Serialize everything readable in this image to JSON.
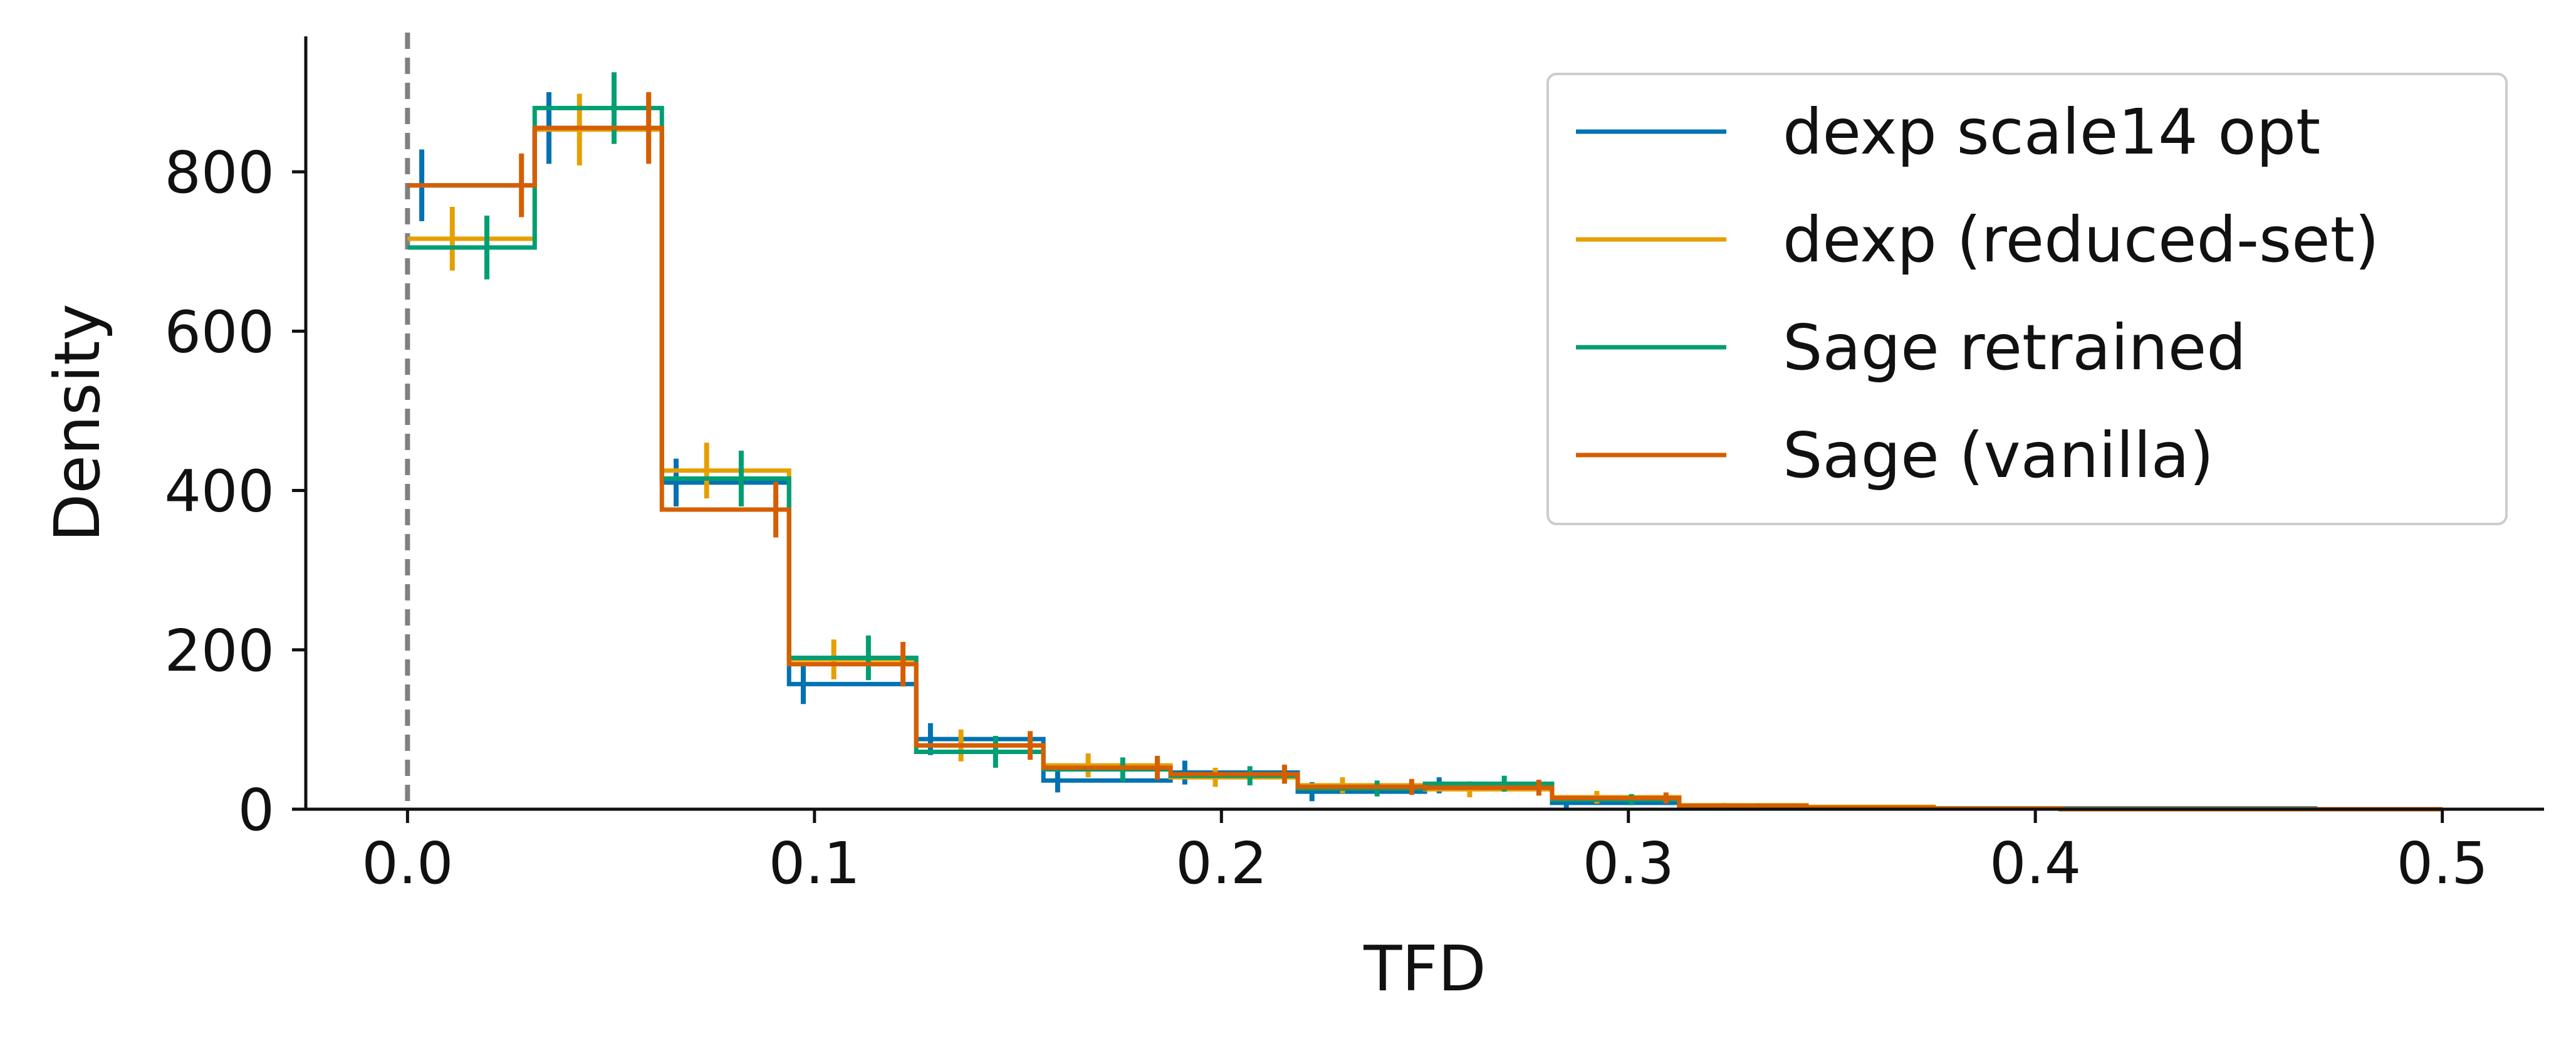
{
  "chart_data": {
    "type": "histogram-step",
    "xlabel": "TFD",
    "ylabel": "Density",
    "xlim": [
      -0.025,
      0.525
    ],
    "ylim": [
      0,
      970
    ],
    "xticks": [
      0.0,
      0.1,
      0.2,
      0.3,
      0.4,
      0.5
    ],
    "xtick_labels": [
      "0.0",
      "0.1",
      "0.2",
      "0.3",
      "0.4",
      "0.5"
    ],
    "yticks": [
      0,
      200,
      400,
      600,
      800
    ],
    "ytick_labels": [
      "0",
      "200",
      "400",
      "600",
      "800"
    ],
    "reference_line": {
      "x": 0.0,
      "style": "dashed",
      "color": "#808080"
    },
    "bin_edges": [
      0,
      0.03125,
      0.0625,
      0.09375,
      0.125,
      0.15625,
      0.1875,
      0.21875,
      0.25,
      0.28125,
      0.3125,
      0.34375,
      0.375,
      0.40625,
      0.4375,
      0.46875,
      0.5
    ],
    "series": [
      {
        "name": "dexp scale14 opt",
        "color": "#0072B2",
        "values": [
          783,
          855,
          410,
          157,
          88,
          36,
          46,
          22,
          30,
          8,
          4,
          2,
          1,
          1,
          1,
          0
        ],
        "errors": [
          45,
          45,
          30,
          25,
          20,
          15,
          15,
          12,
          10,
          6,
          3,
          2,
          1,
          1,
          1,
          0
        ],
        "error_offset": 0.0035
      },
      {
        "name": "dexp (reduced-set)",
        "color": "#E69F00",
        "values": [
          716,
          853,
          425,
          188,
          80,
          55,
          40,
          30,
          25,
          15,
          5,
          3,
          1,
          0,
          0,
          0
        ],
        "errors": [
          40,
          45,
          35,
          25,
          20,
          15,
          12,
          10,
          10,
          8,
          3,
          2,
          1,
          0,
          0,
          0
        ],
        "error_offset": 0.011
      },
      {
        "name": "Sage retrained",
        "color": "#009E73",
        "values": [
          705,
          880,
          415,
          190,
          72,
          50,
          42,
          26,
          32,
          12,
          4,
          2,
          1,
          0,
          0,
          0
        ],
        "errors": [
          40,
          45,
          35,
          28,
          20,
          15,
          12,
          10,
          10,
          7,
          3,
          2,
          1,
          0,
          0,
          0
        ],
        "error_offset": 0.0195
      },
      {
        "name": "Sage (vanilla)",
        "color": "#D55E00",
        "values": [
          783,
          855,
          376,
          182,
          80,
          52,
          44,
          28,
          27,
          14,
          4,
          2,
          1,
          0,
          0,
          0
        ],
        "errors": [
          40,
          45,
          35,
          28,
          18,
          15,
          12,
          10,
          10,
          7,
          3,
          2,
          1,
          0,
          0,
          0
        ],
        "error_offset": 0.028
      }
    ],
    "legend": {
      "placement": "top-right"
    }
  }
}
